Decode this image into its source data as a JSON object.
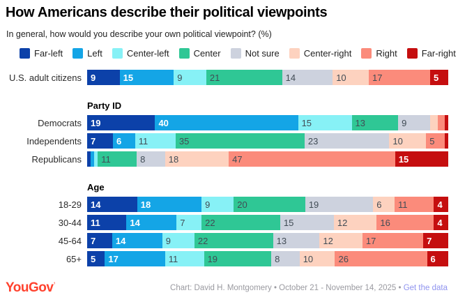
{
  "title": "How Americans describe their political viewpoints",
  "subtitle": "In general, how would you describe your own political viewpoint? (%)",
  "footer": {
    "logo_text": "YouGov",
    "logo_tick": "’",
    "credit": "Chart: David H. Montgomery • October 21 - November 14, 2025 • ",
    "link_text": "Get the data",
    "logo_color": "#ff422e",
    "link_color": "#8f93ef"
  },
  "chart_data": {
    "type": "bar",
    "orientation": "horizontal",
    "stacked": true,
    "value_label_min": 4,
    "categories": [
      {
        "label": "Far-left",
        "color": "#0c41a9",
        "label_style": "light"
      },
      {
        "label": "Left",
        "color": "#14a5e6",
        "label_style": "light"
      },
      {
        "label": "Center-left",
        "color": "#87f1f6",
        "label_style": "dark"
      },
      {
        "label": "Center",
        "color": "#2fc795",
        "label_style": "dark"
      },
      {
        "label": "Not sure",
        "color": "#cdd2de",
        "label_style": "dark"
      },
      {
        "label": "Center-right",
        "color": "#fdd2bf",
        "label_style": "dark"
      },
      {
        "label": "Right",
        "color": "#fb8b7b",
        "label_style": "dark"
      },
      {
        "label": "Far-right",
        "color": "#c50e0f",
        "label_style": "light"
      }
    ],
    "groups": [
      {
        "header": "",
        "rows": [
          {
            "label": "U.S. adult citizens",
            "values": [
              9,
              15,
              9,
              21,
              14,
              10,
              17,
              5
            ]
          }
        ]
      },
      {
        "header": "Party ID",
        "rows": [
          {
            "label": "Democrats",
            "values": [
              19,
              40,
              15,
              13,
              9,
              2,
              2,
              1
            ]
          },
          {
            "label": "Independents",
            "values": [
              7,
              6,
              11,
              35,
              23,
              10,
              5,
              1
            ]
          },
          {
            "label": "Republicans",
            "values": [
              1,
              1,
              1,
              11,
              8,
              18,
              47,
              15
            ]
          }
        ]
      },
      {
        "header": "Age",
        "rows": [
          {
            "label": "18-29",
            "values": [
              14,
              18,
              9,
              20,
              19,
              6,
              11,
              4
            ]
          },
          {
            "label": "30-44",
            "values": [
              11,
              14,
              7,
              22,
              15,
              12,
              16,
              4
            ]
          },
          {
            "label": "45-64",
            "values": [
              7,
              14,
              9,
              22,
              13,
              12,
              17,
              7
            ]
          },
          {
            "label": "65+",
            "values": [
              5,
              17,
              11,
              19,
              8,
              10,
              26,
              6
            ]
          }
        ]
      }
    ]
  }
}
